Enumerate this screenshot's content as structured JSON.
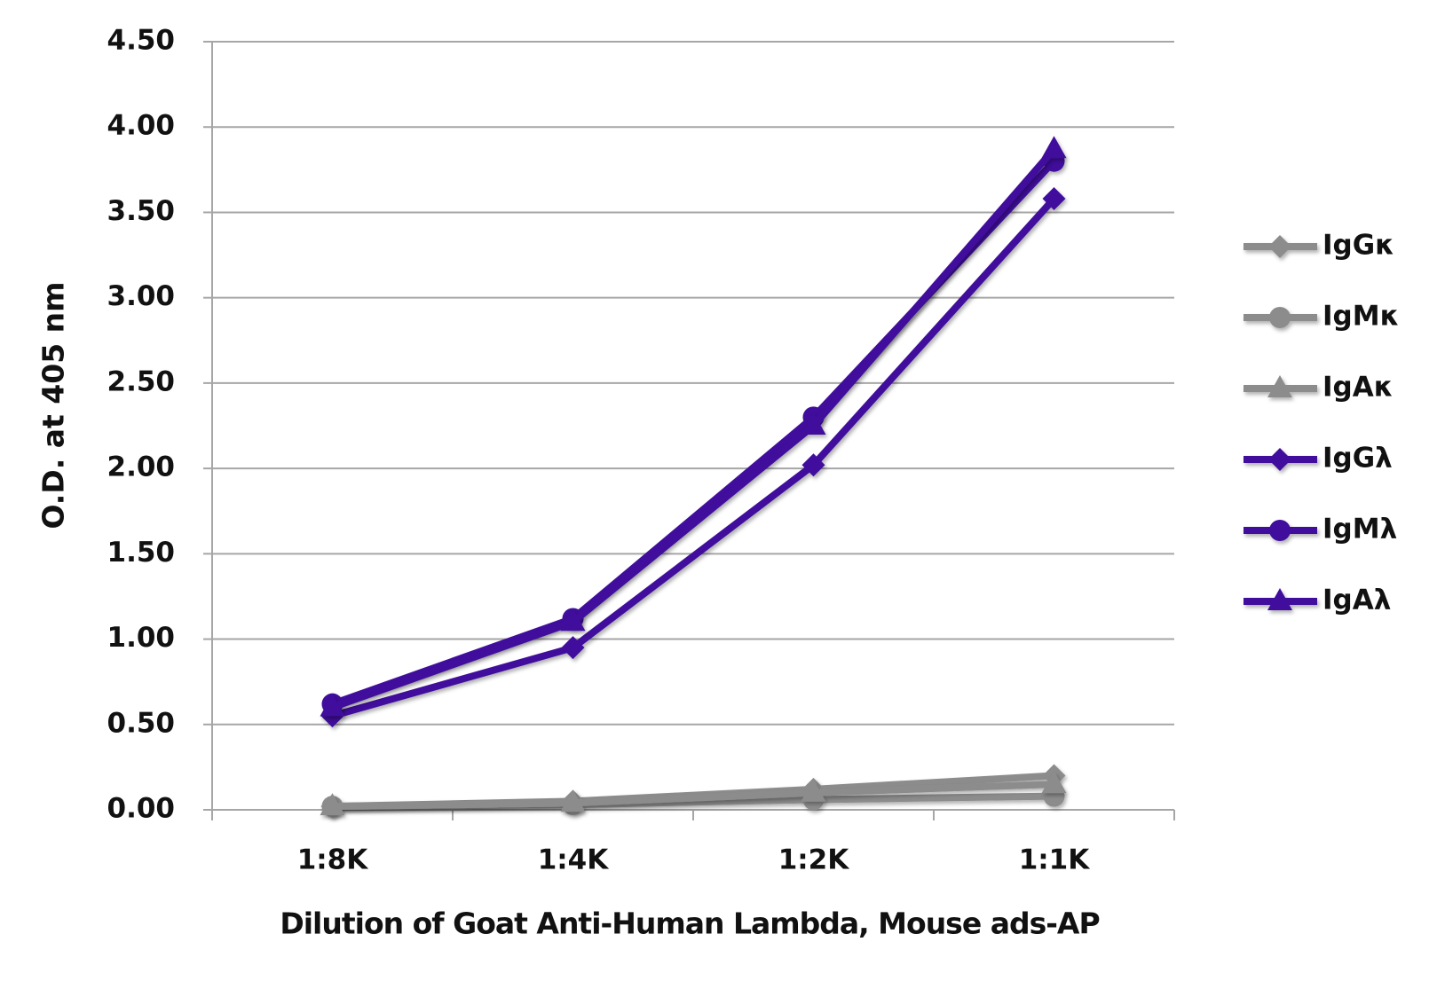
{
  "chart_data": {
    "type": "line",
    "y_label": "O.D. at 405 nm",
    "x_label": "Dilution of Goat Anti-Human Lambda, Mouse ads-AP",
    "categories": [
      "1:8K",
      "1:4K",
      "1:2K",
      "1:1K"
    ],
    "ylim": [
      0,
      4.5
    ],
    "yticks": [
      {
        "value": 0,
        "label": "0.00"
      },
      {
        "value": 0.5,
        "label": "0.50"
      },
      {
        "value": 1,
        "label": "1.00"
      },
      {
        "value": 1.5,
        "label": "1.50"
      },
      {
        "value": 2,
        "label": "2.00"
      },
      {
        "value": 2.5,
        "label": "2.50"
      },
      {
        "value": 3,
        "label": "3.00"
      },
      {
        "value": 3.5,
        "label": "3.50"
      },
      {
        "value": 4,
        "label": "4.00"
      },
      {
        "value": 4.5,
        "label": "4.50"
      }
    ],
    "grid": true,
    "legend": "right",
    "series": [
      {
        "name": "IgGκ",
        "color": "#8c8c8c",
        "marker": "diamond",
        "values": [
          0.02,
          0.05,
          0.12,
          0.2
        ]
      },
      {
        "name": "IgMκ",
        "color": "#8c8c8c",
        "marker": "circle",
        "values": [
          0.02,
          0.03,
          0.06,
          0.08
        ]
      },
      {
        "name": "IgAκ",
        "color": "#8c8c8c",
        "marker": "triangle",
        "values": [
          0.02,
          0.04,
          0.1,
          0.15
        ]
      },
      {
        "name": "IgGλ",
        "color": "#40109c",
        "marker": "diamond",
        "values": [
          0.55,
          0.95,
          2.02,
          3.58
        ]
      },
      {
        "name": "IgMλ",
        "color": "#40109c",
        "marker": "circle",
        "values": [
          0.62,
          1.12,
          2.3,
          3.8
        ]
      },
      {
        "name": "IgAλ",
        "color": "#40109c",
        "marker": "triangle",
        "values": [
          0.6,
          1.1,
          2.25,
          3.87
        ]
      }
    ]
  }
}
